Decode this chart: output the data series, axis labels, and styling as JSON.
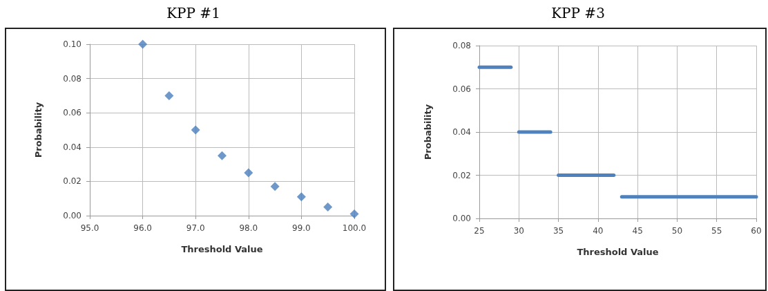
{
  "chart_data": [
    {
      "type": "scatter",
      "title": "KPP #1",
      "xlabel": "Threshold Value",
      "ylabel": "Probability",
      "x": [
        96,
        96.5,
        97,
        97.5,
        98,
        98.5,
        99,
        99.5,
        100
      ],
      "series": [
        {
          "color": "#4a7ebb",
          "values": [
            0.1,
            0.07,
            0.05,
            0.035,
            0.025,
            0.017,
            0.011,
            0.005,
            0.001
          ]
        }
      ],
      "marker": "diamond",
      "grid": true,
      "xlim": [
        95,
        100
      ],
      "xticks": [
        {
          "value": 95,
          "label": "95.0"
        },
        {
          "value": 96,
          "label": "96.0"
        },
        {
          "value": 97,
          "label": "97.0"
        },
        {
          "value": 98,
          "label": "98.0"
        },
        {
          "value": 99,
          "label": "99.0"
        },
        {
          "value": 100,
          "label": "100.0"
        }
      ],
      "ylim": [
        0,
        0.1
      ],
      "yticks": [
        {
          "value": 0,
          "label": "0.00"
        },
        {
          "value": 0.02,
          "label": "0.02"
        },
        {
          "value": 0.04,
          "label": "0.04"
        },
        {
          "value": 0.06,
          "label": "0.06"
        },
        {
          "value": 0.08,
          "label": "0.08"
        },
        {
          "value": 0.1,
          "label": "0.10"
        }
      ]
    },
    {
      "type": "line",
      "title": "KPP #3",
      "xlabel": "Threshold Value",
      "ylabel": "Probability",
      "series": [
        {
          "color": "#4f81bd",
          "x": [
            25,
            29
          ],
          "values": [
            0.07,
            0.07
          ]
        },
        {
          "color": "#4f81bd",
          "x": [
            30,
            34
          ],
          "values": [
            0.04,
            0.04
          ]
        },
        {
          "color": "#4f81bd",
          "x": [
            35,
            42
          ],
          "values": [
            0.02,
            0.02
          ]
        },
        {
          "color": "#4f81bd",
          "x": [
            43,
            60
          ],
          "values": [
            0.01,
            0.01
          ]
        }
      ],
      "marker": "none",
      "line_style": "solid",
      "grid": true,
      "xlim": [
        25,
        60
      ],
      "xticks": [
        25,
        30,
        35,
        40,
        45,
        50,
        55,
        60
      ],
      "ylim": [
        0,
        0.08
      ],
      "yticks": [
        {
          "value": 0,
          "label": "0.00"
        },
        {
          "value": 0.02,
          "label": "0.02"
        },
        {
          "value": 0.04,
          "label": "0.04"
        },
        {
          "value": 0.06,
          "label": "0.06"
        },
        {
          "value": 0.08,
          "label": "0.08"
        }
      ]
    }
  ]
}
